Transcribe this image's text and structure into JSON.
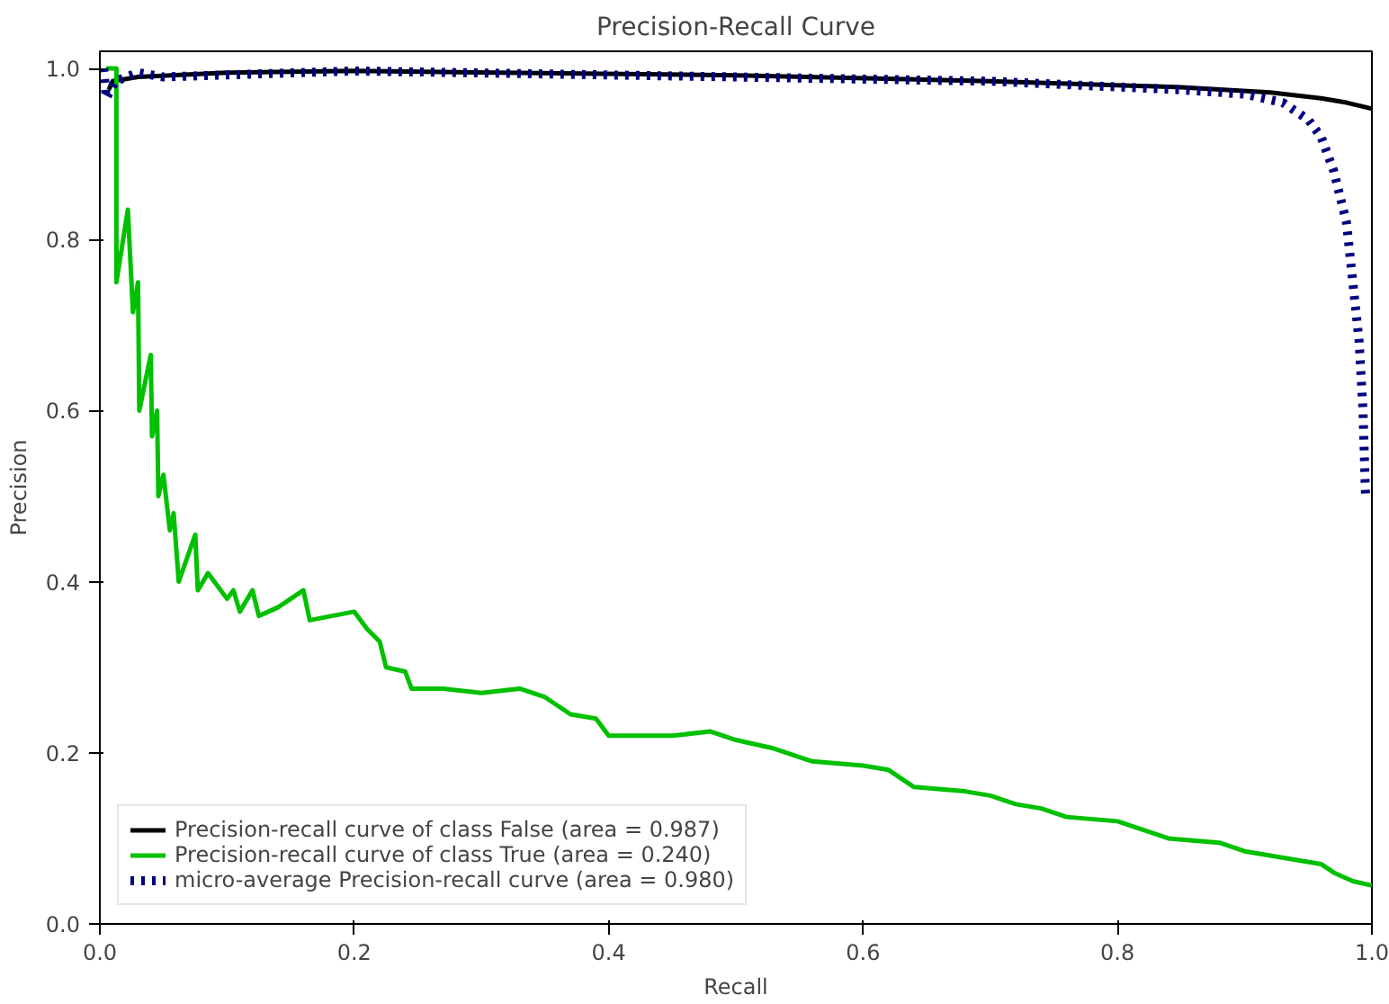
{
  "chart_data": {
    "type": "line",
    "title": "Precision-Recall Curve",
    "xlabel": "Recall",
    "ylabel": "Precision",
    "xlim": [
      0,
      1
    ],
    "ylim": [
      0,
      1.02
    ],
    "xticks": [
      {
        "value": 0,
        "label": "0.0"
      },
      0.2,
      0.4,
      0.6,
      0.8,
      {
        "value": 1,
        "label": "1.0"
      }
    ],
    "yticks": [
      {
        "value": 0,
        "label": "0.0"
      },
      0.2,
      0.4,
      0.6,
      0.8,
      {
        "value": 1,
        "label": "1.0"
      }
    ],
    "grid": false,
    "legend": "bottom left",
    "series": [
      {
        "name": "Precision-recall curve of class False (area = 0.987)",
        "color": "#000000",
        "line_style": "solid",
        "x": [
          0.007,
          0.01,
          0.03,
          0.1,
          0.2,
          0.5,
          0.7,
          0.85,
          0.92,
          0.96,
          0.98,
          1.0
        ],
        "values": [
          0.975,
          0.985,
          0.99,
          0.995,
          0.997,
          0.992,
          0.985,
          0.978,
          0.972,
          0.965,
          0.96,
          0.953
        ]
      },
      {
        "name": "Precision-recall curve of class True (area = 0.240)",
        "color": "#00c000",
        "line_style": "solid",
        "x": [
          0.005,
          0.013,
          0.013,
          0.022,
          0.026,
          0.03,
          0.031,
          0.04,
          0.041,
          0.045,
          0.046,
          0.05,
          0.055,
          0.058,
          0.062,
          0.075,
          0.077,
          0.085,
          0.1,
          0.105,
          0.11,
          0.12,
          0.125,
          0.14,
          0.16,
          0.165,
          0.2,
          0.21,
          0.22,
          0.225,
          0.24,
          0.245,
          0.27,
          0.3,
          0.33,
          0.35,
          0.37,
          0.39,
          0.4,
          0.45,
          0.48,
          0.5,
          0.53,
          0.56,
          0.6,
          0.62,
          0.64,
          0.68,
          0.7,
          0.72,
          0.74,
          0.76,
          0.8,
          0.82,
          0.84,
          0.88,
          0.9,
          0.94,
          0.96,
          0.97,
          0.985,
          1.0
        ],
        "values": [
          1.0,
          1.0,
          0.75,
          0.835,
          0.715,
          0.75,
          0.6,
          0.665,
          0.57,
          0.6,
          0.5,
          0.525,
          0.46,
          0.48,
          0.4,
          0.455,
          0.39,
          0.41,
          0.38,
          0.39,
          0.365,
          0.39,
          0.36,
          0.37,
          0.39,
          0.355,
          0.365,
          0.345,
          0.33,
          0.3,
          0.295,
          0.275,
          0.275,
          0.27,
          0.275,
          0.265,
          0.245,
          0.24,
          0.22,
          0.22,
          0.225,
          0.215,
          0.205,
          0.19,
          0.185,
          0.18,
          0.16,
          0.155,
          0.15,
          0.14,
          0.135,
          0.125,
          0.12,
          0.11,
          0.1,
          0.095,
          0.085,
          0.075,
          0.07,
          0.06,
          0.05,
          0.045
        ]
      },
      {
        "name": "micro-average Precision-recall curve (area = 0.980)",
        "color": "#000080",
        "line_style": "dotted",
        "x": [
          0.003,
          0.005,
          0.012,
          0.03,
          0.05,
          0.2,
          0.5,
          0.7,
          0.85,
          0.9,
          0.93,
          0.95,
          0.96,
          0.97,
          0.98,
          0.985,
          0.99,
          0.993,
          0.995
        ],
        "values": [
          1.0,
          0.965,
          0.985,
          0.995,
          0.99,
          0.997,
          0.99,
          0.985,
          0.975,
          0.97,
          0.96,
          0.94,
          0.92,
          0.88,
          0.82,
          0.75,
          0.68,
          0.6,
          0.5
        ]
      }
    ]
  }
}
